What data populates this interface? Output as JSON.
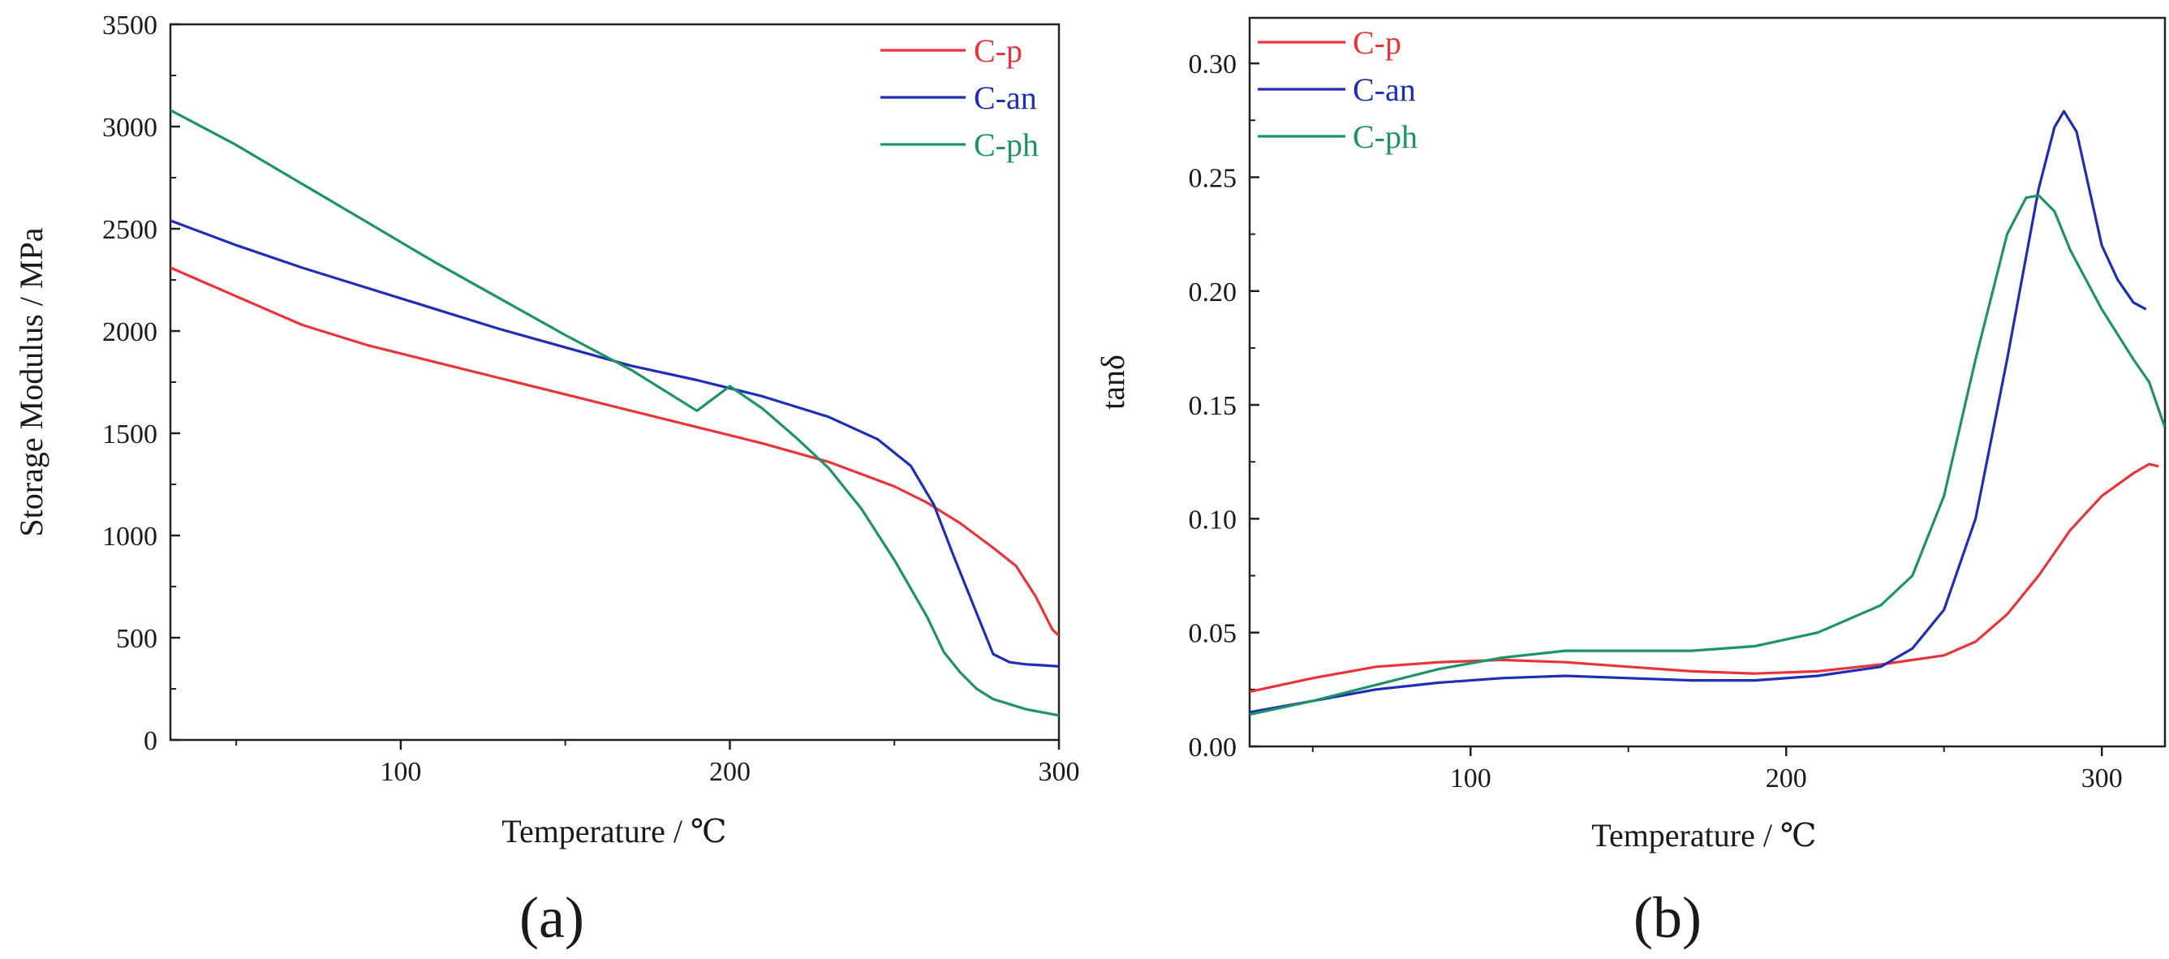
{
  "chart_data": [
    {
      "id": "a",
      "type": "line",
      "panel_label": "(a)",
      "xlabel": "Temperature / ℃",
      "ylabel": "Storage Modulus / MPa",
      "xlim": [
        30,
        300
      ],
      "ylim": [
        0,
        3500
      ],
      "xticks": [
        100,
        200,
        300
      ],
      "yticks": [
        0,
        500,
        1000,
        1500,
        2000,
        2500,
        3000,
        3500
      ],
      "xtick_labels": [
        "100",
        "200",
        "300"
      ],
      "ytick_labels": [
        "0",
        "500",
        "1000",
        "1500",
        "2000",
        "2500",
        "3000",
        "3500"
      ],
      "legend_position": "top-right",
      "series": [
        {
          "name": "C-p",
          "color": "#e8343a",
          "x": [
            30,
            50,
            70,
            90,
            110,
            130,
            150,
            170,
            190,
            210,
            230,
            250,
            260,
            270,
            280,
            287,
            293,
            298,
            300
          ],
          "y": [
            2310,
            2170,
            2030,
            1930,
            1850,
            1770,
            1690,
            1610,
            1530,
            1450,
            1360,
            1240,
            1160,
            1060,
            940,
            850,
            700,
            540,
            510
          ]
        },
        {
          "name": "C-an",
          "color": "#1f2fb5",
          "x": [
            30,
            50,
            70,
            90,
            110,
            130,
            150,
            170,
            190,
            210,
            230,
            245,
            255,
            262,
            268,
            275,
            280,
            285,
            290,
            295,
            300
          ],
          "y": [
            2540,
            2420,
            2310,
            2210,
            2110,
            2010,
            1920,
            1830,
            1760,
            1680,
            1580,
            1470,
            1340,
            1150,
            900,
            620,
            420,
            380,
            370,
            365,
            360
          ]
        },
        {
          "name": "C-ph",
          "color": "#1e9466",
          "x": [
            30,
            50,
            70,
            90,
            110,
            130,
            150,
            170,
            190,
            200,
            210,
            220,
            230,
            240,
            250,
            260,
            265,
            270,
            275,
            280,
            290,
            300
          ],
          "y": [
            3080,
            2910,
            2720,
            2530,
            2340,
            2160,
            1980,
            1810,
            1610,
            1730,
            1620,
            1480,
            1330,
            1130,
            880,
            600,
            430,
            330,
            250,
            200,
            150,
            120
          ]
        }
      ]
    },
    {
      "id": "b",
      "type": "line",
      "panel_label": "(b)",
      "xlabel": "Temperature / ℃",
      "ylabel": "tanδ",
      "xlim": [
        30,
        320
      ],
      "ylim": [
        0,
        0.32
      ],
      "xticks": [
        100,
        200,
        300
      ],
      "yticks": [
        0,
        0.05,
        0.1,
        0.15,
        0.2,
        0.25,
        0.3
      ],
      "xtick_labels": [
        "100",
        "200",
        "300"
      ],
      "ytick_labels": [
        "0.00",
        "0.05",
        "0.10",
        "0.15",
        "0.20",
        "0.25",
        "0.30"
      ],
      "legend_position": "top-left",
      "series": [
        {
          "name": "C-p",
          "color": "#e8343a",
          "x": [
            30,
            50,
            70,
            90,
            110,
            130,
            150,
            170,
            190,
            210,
            230,
            250,
            260,
            270,
            280,
            290,
            300,
            310,
            315,
            318
          ],
          "y": [
            0.024,
            0.03,
            0.035,
            0.037,
            0.038,
            0.037,
            0.035,
            0.033,
            0.032,
            0.033,
            0.036,
            0.04,
            0.046,
            0.058,
            0.075,
            0.095,
            0.11,
            0.12,
            0.124,
            0.123
          ]
        },
        {
          "name": "C-an",
          "color": "#1f2fb5",
          "x": [
            30,
            50,
            70,
            90,
            110,
            130,
            150,
            170,
            190,
            210,
            230,
            240,
            250,
            260,
            270,
            280,
            285,
            288,
            292,
            296,
            300,
            305,
            310,
            314
          ],
          "y": [
            0.015,
            0.02,
            0.025,
            0.028,
            0.03,
            0.031,
            0.03,
            0.029,
            0.029,
            0.031,
            0.035,
            0.043,
            0.06,
            0.1,
            0.17,
            0.245,
            0.272,
            0.279,
            0.27,
            0.245,
            0.22,
            0.205,
            0.195,
            0.192
          ]
        },
        {
          "name": "C-ph",
          "color": "#1e9466",
          "x": [
            30,
            50,
            70,
            90,
            110,
            130,
            150,
            170,
            190,
            210,
            230,
            240,
            250,
            260,
            270,
            276,
            280,
            285,
            290,
            300,
            310,
            315,
            320
          ],
          "y": [
            0.014,
            0.02,
            0.027,
            0.034,
            0.039,
            0.042,
            0.042,
            0.042,
            0.044,
            0.05,
            0.062,
            0.075,
            0.11,
            0.17,
            0.225,
            0.241,
            0.242,
            0.235,
            0.218,
            0.192,
            0.17,
            0.16,
            0.14
          ]
        }
      ]
    }
  ]
}
